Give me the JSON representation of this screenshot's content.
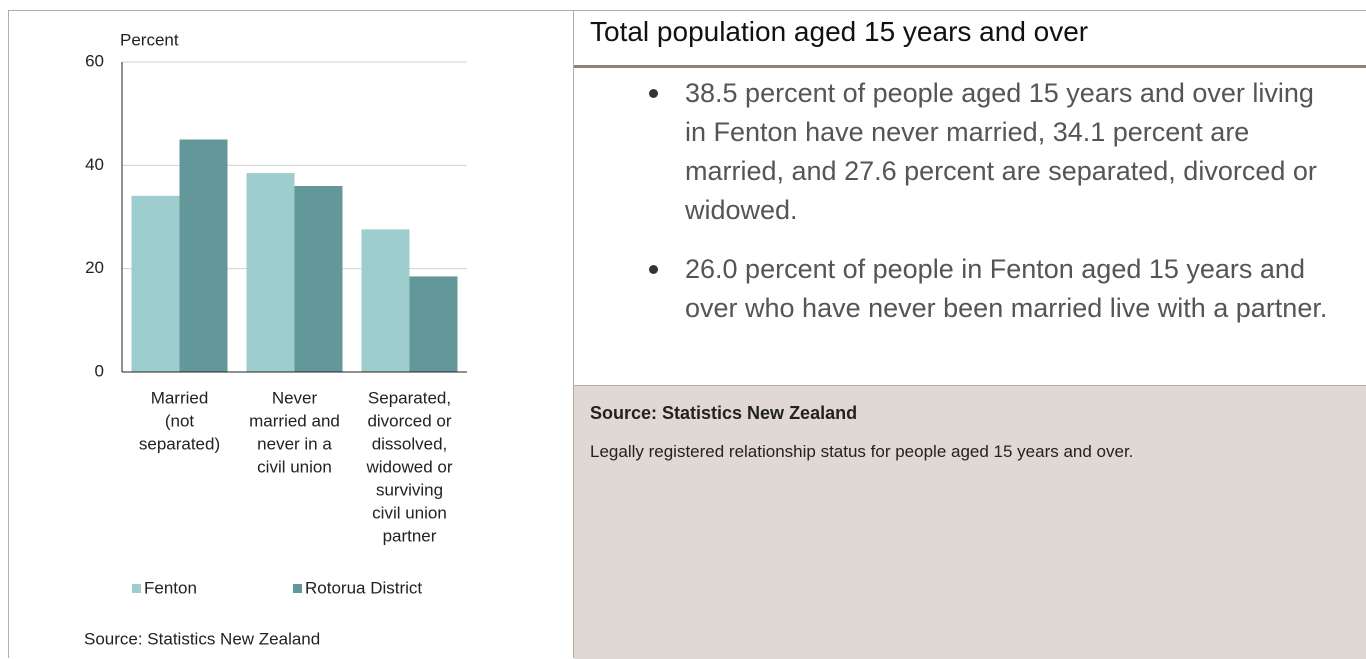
{
  "chart_data": {
    "type": "bar",
    "y_label": "Percent",
    "categories": [
      [
        "Married",
        "(not",
        "separated)"
      ],
      [
        "Never",
        "married and",
        "never in a",
        "civil union"
      ],
      [
        "Separated,",
        "divorced or",
        "dissolved,",
        "widowed or",
        "surviving",
        "civil union",
        "partner"
      ]
    ],
    "series": [
      {
        "name": "Fenton",
        "color": "#9ecdce",
        "values": [
          34.1,
          38.5,
          27.6
        ]
      },
      {
        "name": "Rotorua District",
        "color": "#62989a",
        "values": [
          45.0,
          36.0,
          18.5
        ]
      }
    ],
    "ylim": [
      0,
      60
    ],
    "yticks": [
      0,
      20,
      40,
      60
    ],
    "grid": true,
    "legend": "bottom",
    "source": "Source: Statistics New Zealand"
  },
  "panel": {
    "title": "Total population aged 15 years and over",
    "bullets": [
      "38.5 percent of people aged 15 years and over living in Fenton have never married, 34.1 percent are married, and 27.6 percent are separated, divorced or widowed.",
      "26.0 percent of people in Fenton aged 15 years and over who have never been married live with a partner."
    ]
  },
  "footer": {
    "source": "Source: Statistics New Zealand",
    "note": "Legally registered relationship status for people aged 15 years and over."
  }
}
